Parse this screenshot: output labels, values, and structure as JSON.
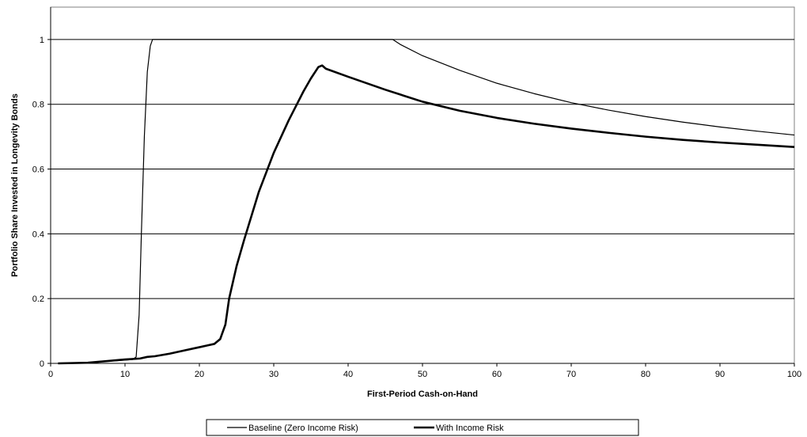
{
  "chart_data": {
    "type": "line",
    "title": "",
    "xlabel": "First-Period Cash-on-Hand",
    "ylabel": "Portfolio Share Invested in Longevity Bonds",
    "xlim": [
      0,
      100
    ],
    "ylim": [
      0,
      1.1
    ],
    "xticks": [
      0,
      10,
      20,
      30,
      40,
      50,
      60,
      70,
      80,
      90,
      100
    ],
    "yticks": [
      0,
      0.2,
      0.4,
      0.6,
      0.8,
      1
    ],
    "xtick_labels": [
      "0",
      "10",
      "20",
      "30",
      "40",
      "50",
      "60",
      "70",
      "80",
      "90",
      "100"
    ],
    "ytick_labels": [
      "0",
      "0.2",
      "0.4",
      "0.6",
      "0.8",
      "1"
    ],
    "grid": "horizontal",
    "legend_position": "bottom",
    "series": [
      {
        "name": "Baseline (Zero Income Risk)",
        "stroke_width": 1.2,
        "x": [
          1,
          5,
          8,
          10,
          11,
          11.5,
          11.9,
          12.2,
          12.6,
          13,
          13.4,
          13.7,
          14,
          20,
          30,
          40,
          46,
          47,
          50,
          55,
          60,
          65,
          70,
          75,
          80,
          85,
          90,
          95,
          100
        ],
        "y": [
          0,
          0.003,
          0.007,
          0.01,
          0.012,
          0.02,
          0.15,
          0.4,
          0.7,
          0.9,
          0.98,
          1,
          1,
          1,
          1,
          1,
          1,
          0.985,
          0.95,
          0.905,
          0.865,
          0.833,
          0.805,
          0.782,
          0.762,
          0.745,
          0.73,
          0.717,
          0.705
        ]
      },
      {
        "name": "With Income Risk",
        "stroke_width": 2.6,
        "x": [
          1,
          5,
          10,
          12,
          13,
          14,
          16,
          18,
          20,
          21,
          22,
          22.8,
          23.5,
          24,
          25,
          26,
          28,
          30,
          32,
          34,
          35,
          36,
          36.5,
          37,
          40,
          45,
          50,
          55,
          60,
          65,
          70,
          75,
          80,
          85,
          90,
          95,
          100
        ],
        "y": [
          0,
          0.002,
          0.012,
          0.015,
          0.02,
          0.022,
          0.03,
          0.04,
          0.05,
          0.055,
          0.06,
          0.075,
          0.12,
          0.2,
          0.3,
          0.38,
          0.53,
          0.65,
          0.75,
          0.84,
          0.88,
          0.915,
          0.92,
          0.91,
          0.885,
          0.845,
          0.808,
          0.78,
          0.758,
          0.74,
          0.725,
          0.712,
          0.7,
          0.69,
          0.682,
          0.675,
          0.668
        ]
      }
    ]
  }
}
